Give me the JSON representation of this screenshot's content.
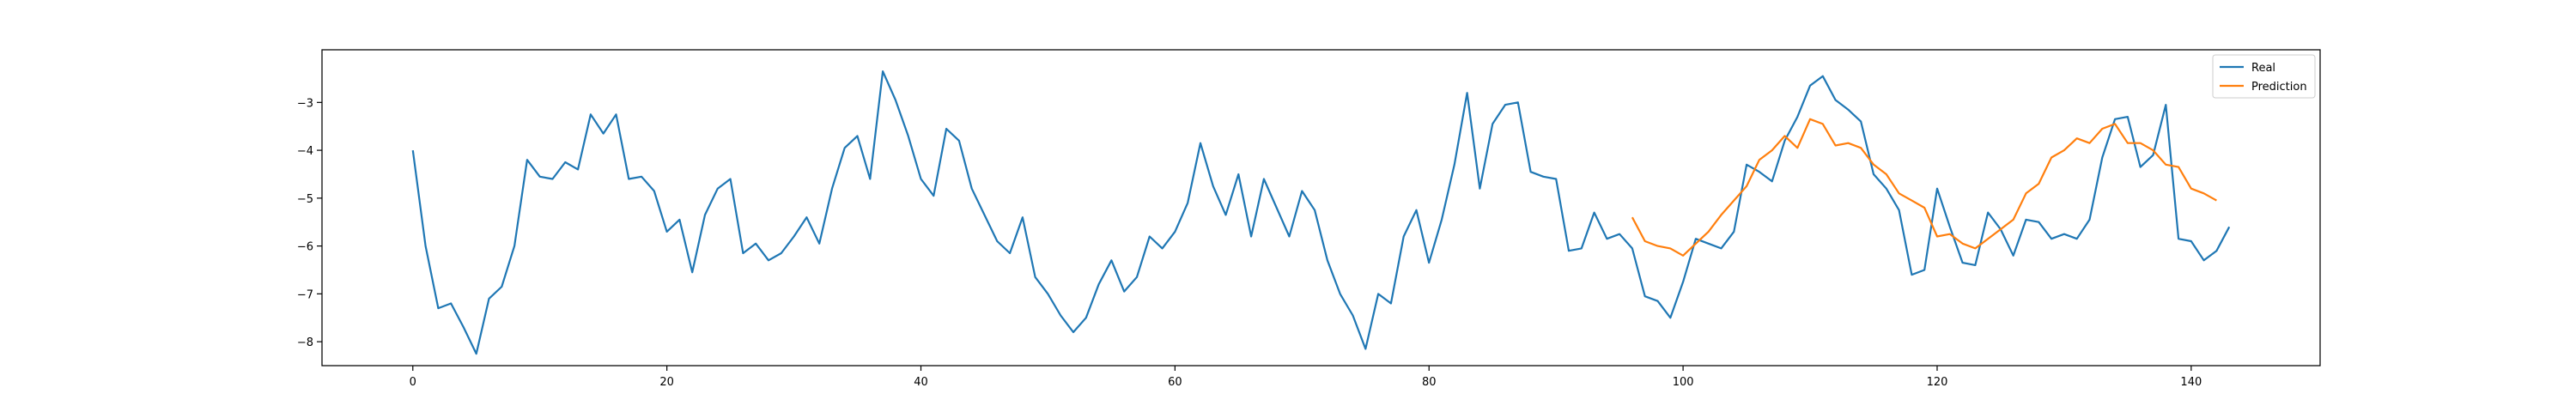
{
  "chart_data": {
    "type": "line",
    "title": "",
    "xlabel": "",
    "ylabel": "",
    "xlim": [
      -7.15,
      150.15
    ],
    "ylim": [
      -8.5,
      -1.9
    ],
    "xticks": [
      0,
      20,
      40,
      60,
      80,
      100,
      120,
      140
    ],
    "yticks": [
      -8,
      -7,
      -6,
      -5,
      -4,
      -3
    ],
    "xtick_labels": [
      "0",
      "20",
      "40",
      "60",
      "80",
      "100",
      "120",
      "140"
    ],
    "ytick_labels": [
      "−8",
      "−7",
      "−6",
      "−5",
      "−4",
      "−3"
    ],
    "grid": false,
    "legend_position": "upper right",
    "series": [
      {
        "name": "Real",
        "color": "#1f77b4",
        "x_start": 0,
        "values": [
          -4.0,
          -6.0,
          -7.3,
          -7.2,
          -7.7,
          -8.25,
          -7.1,
          -6.85,
          -6.0,
          -4.2,
          -4.55,
          -4.6,
          -4.25,
          -4.4,
          -3.25,
          -3.65,
          -3.25,
          -4.6,
          -4.55,
          -4.85,
          -5.7,
          -5.45,
          -6.55,
          -5.35,
          -4.8,
          -4.6,
          -6.15,
          -5.95,
          -6.3,
          -6.15,
          -5.8,
          -5.4,
          -5.95,
          -4.8,
          -3.95,
          -3.7,
          -4.6,
          -2.35,
          -2.95,
          -3.7,
          -4.6,
          -4.95,
          -3.55,
          -3.8,
          -4.8,
          -5.35,
          -5.9,
          -6.15,
          -5.4,
          -6.65,
          -7.0,
          -7.45,
          -7.8,
          -7.5,
          -6.8,
          -6.3,
          -6.95,
          -6.65,
          -5.8,
          -6.05,
          -5.7,
          -5.1,
          -3.85,
          -4.75,
          -5.35,
          -4.5,
          -5.8,
          -4.6,
          -5.2,
          -5.8,
          -4.85,
          -5.25,
          -6.3,
          -7.0,
          -7.45,
          -8.15,
          -7.0,
          -7.2,
          -5.8,
          -5.25,
          -6.35,
          -5.45,
          -4.3,
          -2.8,
          -4.8,
          -3.45,
          -3.05,
          -3.0,
          -4.45,
          -4.55,
          -4.6,
          -6.1,
          -6.05,
          -5.3,
          -5.85,
          -5.75,
          -6.05,
          -7.05,
          -7.15,
          -7.5,
          -6.75,
          -5.85,
          -5.95,
          -6.05,
          -5.7,
          -4.3,
          -4.45,
          -4.65,
          -3.8,
          -3.3,
          -2.65,
          -2.45,
          -2.95,
          -3.15,
          -3.4,
          -4.5,
          -4.8,
          -5.25,
          -6.6,
          -6.5,
          -4.8,
          -5.6,
          -6.35,
          -6.4,
          -5.3,
          -5.65,
          -6.2,
          -5.45,
          -5.5,
          -5.85,
          -5.75,
          -5.85,
          -5.45,
          -4.15,
          -3.35,
          -3.3,
          -4.35,
          -4.1,
          -3.05,
          -5.85,
          -5.9,
          -6.3,
          -6.1,
          -5.6
        ]
      },
      {
        "name": "Prediction",
        "color": "#ff7f0e",
        "x_start": 96,
        "values": [
          -5.4,
          -5.9,
          -6.0,
          -6.05,
          -6.2,
          -5.95,
          -5.7,
          -5.35,
          -5.05,
          -4.75,
          -4.2,
          -4.0,
          -3.7,
          -3.95,
          -3.35,
          -3.45,
          -3.9,
          -3.85,
          -3.95,
          -4.3,
          -4.5,
          -4.9,
          -5.05,
          -5.2,
          -5.8,
          -5.75,
          -5.95,
          -6.05,
          -5.85,
          -5.65,
          -5.45,
          -4.9,
          -4.7,
          -4.15,
          -4.0,
          -3.75,
          -3.85,
          -3.55,
          -3.45,
          -3.85,
          -3.85,
          -4.0,
          -4.3,
          -4.35,
          -4.8,
          -4.9,
          -5.05
        ]
      }
    ]
  }
}
